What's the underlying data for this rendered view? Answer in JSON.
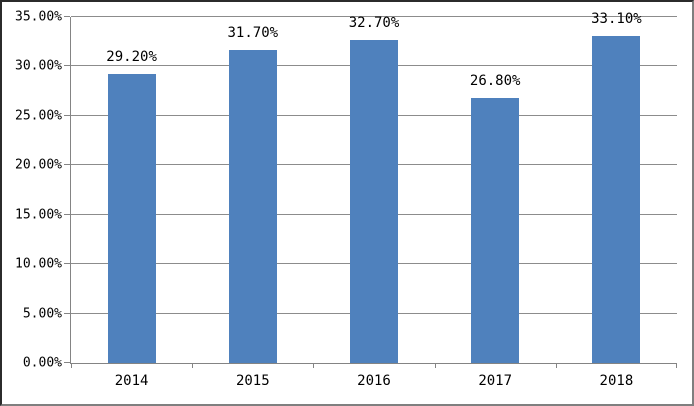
{
  "chart_data": {
    "type": "bar",
    "categories": [
      "2014",
      "2015",
      "2016",
      "2017",
      "2018"
    ],
    "values": [
      29.2,
      31.7,
      32.7,
      26.8,
      33.1
    ],
    "data_labels": [
      "29.20%",
      "31.70%",
      "32.70%",
      "26.80%",
      "33.10%"
    ],
    "title": "",
    "xlabel": "",
    "ylabel": "",
    "ylim": [
      0,
      35
    ],
    "y_tick_interval": 5,
    "y_tick_labels": [
      "0.00%",
      "5.00%",
      "10.00%",
      "15.00%",
      "20.00%",
      "25.00%",
      "30.00%",
      "35.00%"
    ],
    "grid": "horizontal",
    "legend": "none",
    "colors": {
      "bar_fill": "#4F81BD",
      "gridline": "#8C8C8C",
      "axis_line": "#848484",
      "text": "#000000",
      "plot_background": "#FFFFFF"
    }
  }
}
